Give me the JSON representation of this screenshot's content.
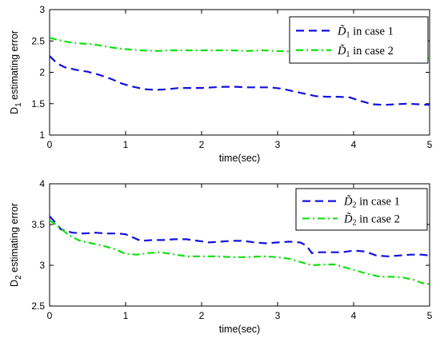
{
  "colors": {
    "case1": "#1010e0",
    "case2": "#10e010"
  },
  "chart_data": [
    {
      "type": "line",
      "xlabel": "time(sec)",
      "ylabel": {
        "main": "D",
        "sub": "1",
        "rest": " estimating error"
      },
      "xlim": [
        0,
        5
      ],
      "ylim": [
        1,
        3
      ],
      "xticks": [
        "0",
        "1",
        "2",
        "3",
        "4",
        "5"
      ],
      "yticks": [
        "1",
        "1.5",
        "2",
        "2.5",
        "3"
      ],
      "legend_position": "top-right",
      "series": [
        {
          "name": "D̃1 in case 1",
          "legend": {
            "sym": "D̃",
            "sub": "1",
            "text": " in case 1"
          },
          "style": "dashed",
          "x": [
            0,
            0.05,
            0.1,
            0.2,
            0.35,
            0.5,
            0.65,
            0.8,
            0.95,
            1.1,
            1.25,
            1.4,
            1.55,
            1.7,
            1.85,
            2.0,
            2.15,
            2.3,
            2.45,
            2.6,
            2.75,
            2.9,
            3.05,
            3.2,
            3.35,
            3.5,
            3.65,
            3.8,
            3.95,
            4.1,
            4.25,
            4.4,
            4.55,
            4.7,
            4.85,
            5.0
          ],
          "y": [
            2.26,
            2.2,
            2.14,
            2.08,
            2.04,
            2.01,
            1.96,
            1.9,
            1.82,
            1.77,
            1.73,
            1.72,
            1.73,
            1.75,
            1.75,
            1.75,
            1.76,
            1.77,
            1.77,
            1.76,
            1.76,
            1.76,
            1.74,
            1.7,
            1.66,
            1.62,
            1.61,
            1.61,
            1.6,
            1.54,
            1.49,
            1.48,
            1.49,
            1.5,
            1.49,
            1.48
          ]
        },
        {
          "name": "D̃1 in case 2",
          "legend": {
            "sym": "D̃",
            "sub": "1",
            "text": " in case 2"
          },
          "style": "dashdot",
          "x": [
            0,
            0.1,
            0.25,
            0.4,
            0.55,
            0.7,
            0.85,
            1.0,
            1.2,
            1.4,
            1.6,
            1.8,
            2.0,
            2.2,
            2.4,
            2.6,
            2.8,
            3.0,
            3.2,
            3.4,
            3.6,
            3.8,
            4.0,
            4.2,
            4.4,
            4.6,
            4.8,
            5.0
          ],
          "y": [
            2.55,
            2.52,
            2.48,
            2.46,
            2.45,
            2.42,
            2.39,
            2.37,
            2.35,
            2.34,
            2.35,
            2.35,
            2.35,
            2.35,
            2.35,
            2.34,
            2.35,
            2.34,
            2.33,
            2.31,
            2.28,
            2.26,
            2.25,
            2.24,
            2.23,
            2.23,
            2.23,
            2.22
          ]
        }
      ]
    },
    {
      "type": "line",
      "xlabel": "time(sec)",
      "ylabel": {
        "main": "D",
        "sub": "2",
        "rest": " estimating error"
      },
      "xlim": [
        0,
        5
      ],
      "ylim": [
        2.5,
        4
      ],
      "xticks": [
        "0",
        "1",
        "2",
        "3",
        "4",
        "5"
      ],
      "yticks": [
        "2.5",
        "3",
        "3.5",
        "4"
      ],
      "legend_position": "top-right",
      "series": [
        {
          "name": "D̃2 in case 1",
          "legend": {
            "sym": "D̃",
            "sub": "2",
            "text": " in case 1"
          },
          "style": "dashed",
          "x": [
            0,
            0.05,
            0.15,
            0.3,
            0.45,
            0.6,
            0.75,
            0.9,
            1.0,
            1.1,
            1.2,
            1.35,
            1.5,
            1.65,
            1.8,
            1.95,
            2.1,
            2.25,
            2.4,
            2.55,
            2.7,
            2.85,
            3.0,
            3.15,
            3.3,
            3.38,
            3.45,
            3.55,
            3.7,
            3.85,
            4.0,
            4.15,
            4.3,
            4.45,
            4.6,
            4.75,
            4.9,
            5.0
          ],
          "y": [
            3.6,
            3.55,
            3.44,
            3.4,
            3.39,
            3.4,
            3.39,
            3.39,
            3.38,
            3.34,
            3.3,
            3.31,
            3.31,
            3.32,
            3.32,
            3.3,
            3.28,
            3.29,
            3.3,
            3.3,
            3.28,
            3.27,
            3.28,
            3.29,
            3.28,
            3.24,
            3.15,
            3.16,
            3.16,
            3.16,
            3.18,
            3.17,
            3.12,
            3.11,
            3.12,
            3.13,
            3.13,
            3.12
          ]
        },
        {
          "name": "D̃2 in case 2",
          "legend": {
            "sym": "D̃",
            "sub": "2",
            "text": " in case 2"
          },
          "style": "dashdot",
          "x": [
            0,
            0.1,
            0.25,
            0.4,
            0.55,
            0.7,
            0.85,
            1.0,
            1.15,
            1.3,
            1.45,
            1.6,
            1.8,
            2.0,
            2.2,
            2.4,
            2.6,
            2.8,
            3.0,
            3.15,
            3.3,
            3.45,
            3.6,
            3.75,
            3.9,
            4.05,
            4.2,
            4.35,
            4.5,
            4.65,
            4.8,
            4.9,
            5.0
          ],
          "y": [
            3.55,
            3.49,
            3.37,
            3.3,
            3.27,
            3.24,
            3.2,
            3.14,
            3.13,
            3.15,
            3.16,
            3.14,
            3.11,
            3.11,
            3.11,
            3.1,
            3.1,
            3.11,
            3.1,
            3.08,
            3.04,
            3.0,
            3.01,
            3.01,
            2.97,
            2.93,
            2.89,
            2.86,
            2.86,
            2.85,
            2.82,
            2.78,
            2.77
          ]
        }
      ]
    }
  ]
}
